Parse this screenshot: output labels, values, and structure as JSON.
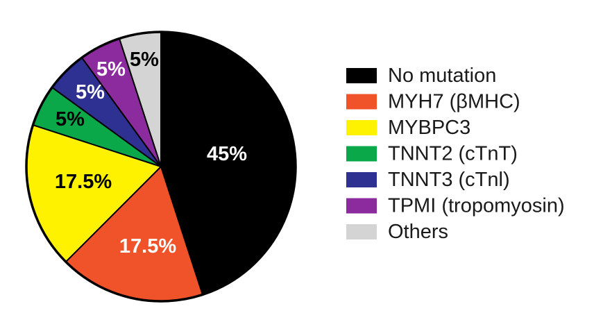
{
  "chart_data": {
    "type": "pie",
    "unit": "%",
    "slices": [
      {
        "name": "No mutation",
        "value": 45,
        "label": "45%",
        "color": "#000000",
        "label_color": "#ffffff"
      },
      {
        "name": "MYH7 (βMHC)",
        "value": 17.5,
        "label": "17.5%",
        "color": "#f0532a",
        "label_color": "#ffffff"
      },
      {
        "name": "MYBPC3",
        "value": 17.5,
        "label": "17.5%",
        "color": "#fff200",
        "label_color": "#000000"
      },
      {
        "name": "TNNT2 (cTnT)",
        "value": 5,
        "label": "5%",
        "color": "#0ba84a",
        "label_color": "#000000"
      },
      {
        "name": "TNNT3 (cTnl)",
        "value": 5,
        "label": "5%",
        "color": "#2e3192",
        "label_color": "#ffffff"
      },
      {
        "name": "TPMI (tropomyosin)",
        "value": 5,
        "label": "5%",
        "color": "#8b2b9e",
        "label_color": "#ffffff"
      },
      {
        "name": "Others",
        "value": 5,
        "label": "5%",
        "color": "#d4d4d4",
        "label_color": "#000000"
      }
    ],
    "start_angle": "12 o'clock",
    "direction": "clockwise",
    "legend_position": "right"
  }
}
